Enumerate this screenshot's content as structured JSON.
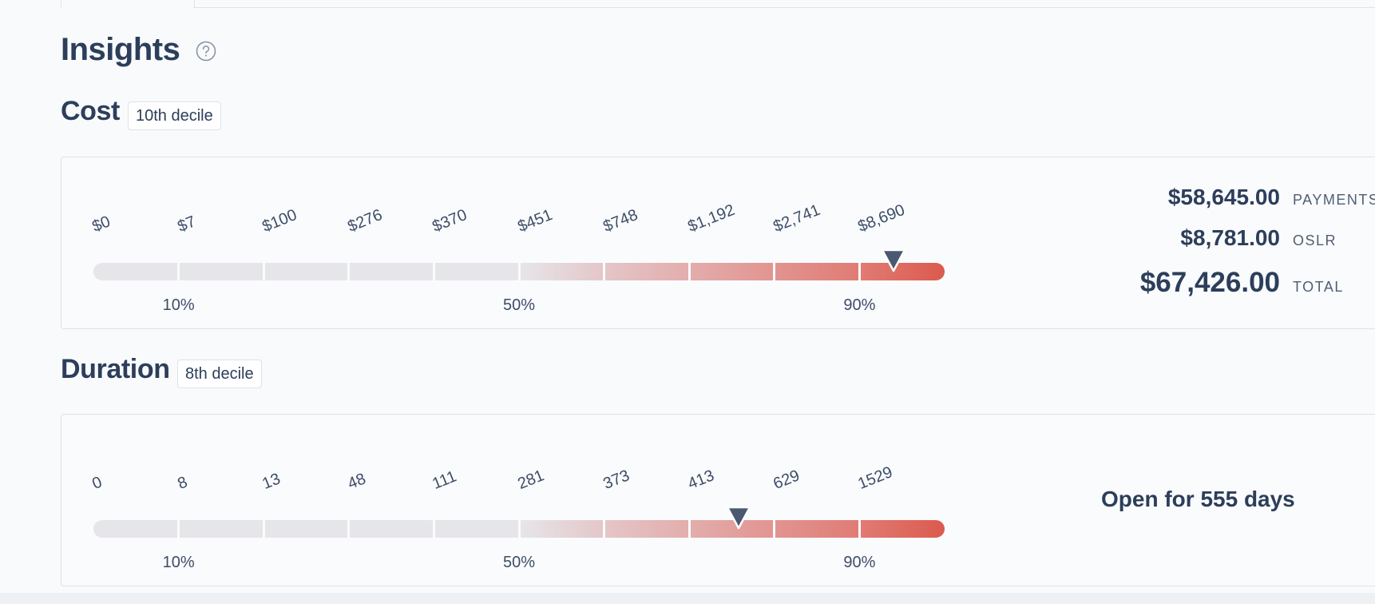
{
  "page": {
    "title": "Insights",
    "help_icon": "help-circle-icon"
  },
  "cost": {
    "title": "Cost",
    "decile_badge": "10th decile",
    "ticks": [
      "$0",
      "$7",
      "$100",
      "$276",
      "$370",
      "$451",
      "$748",
      "$1,192",
      "$2,741",
      "$8,690"
    ],
    "percentiles": [
      "10%",
      "50%",
      "90%"
    ],
    "marker_position": 0.94,
    "summary": {
      "payments_amount": "$58,645.00",
      "payments_label": "PAYMENTS",
      "oslr_amount": "$8,781.00",
      "oslr_label": "OSLR",
      "total_amount": "$67,426.00",
      "total_label": "TOTAL"
    }
  },
  "duration": {
    "title": "Duration",
    "decile_badge": "8th decile",
    "ticks": [
      "0",
      "8",
      "13",
      "48",
      "111",
      "281",
      "373",
      "413",
      "629",
      "1529"
    ],
    "percentiles": [
      "10%",
      "50%",
      "90%"
    ],
    "marker_position": 0.758,
    "summary_text": "Open for 555 days"
  },
  "colors": {
    "text": "#2c3e5a",
    "track_base": "#e6e6ea",
    "track_high": "#dc5a4e",
    "marker": "#4a5870"
  }
}
